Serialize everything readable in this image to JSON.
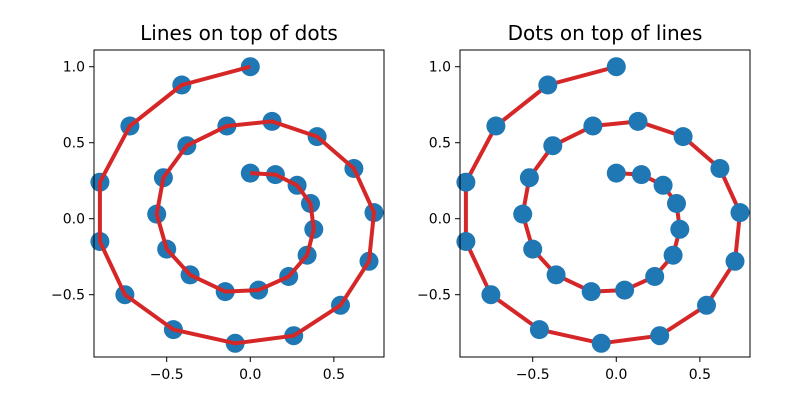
{
  "chart_data": [
    {
      "type": "scatter",
      "title": "Lines on top of dots",
      "xlabel": "",
      "ylabel": "",
      "xlim": [
        -0.935,
        0.8
      ],
      "ylim": [
        -0.91,
        1.11
      ],
      "xticks": [
        -0.5,
        0.0,
        0.5
      ],
      "xtick_labels": [
        "−0.5",
        "0.0",
        "0.5"
      ],
      "yticks": [
        -0.5,
        0.0,
        0.5,
        1.0
      ],
      "ytick_labels": [
        "−0.5",
        "0.0",
        "0.5",
        "1.0"
      ],
      "grid": false,
      "layering": "lines-over-dots",
      "dot_color": "#1f77b4",
      "line_color": "#d62728",
      "points": [
        {
          "x": 0.0,
          "y": 0.3
        },
        {
          "x": 0.15,
          "y": 0.29
        },
        {
          "x": 0.28,
          "y": 0.22
        },
        {
          "x": 0.36,
          "y": 0.1
        },
        {
          "x": 0.38,
          "y": -0.07
        },
        {
          "x": 0.34,
          "y": -0.24
        },
        {
          "x": 0.23,
          "y": -0.38
        },
        {
          "x": 0.05,
          "y": -0.47
        },
        {
          "x": -0.15,
          "y": -0.48
        },
        {
          "x": -0.36,
          "y": -0.37
        },
        {
          "x": -0.5,
          "y": -0.2
        },
        {
          "x": -0.56,
          "y": 0.03
        },
        {
          "x": -0.52,
          "y": 0.27
        },
        {
          "x": -0.38,
          "y": 0.48
        },
        {
          "x": -0.14,
          "y": 0.61
        },
        {
          "x": 0.13,
          "y": 0.64
        },
        {
          "x": 0.4,
          "y": 0.54
        },
        {
          "x": 0.62,
          "y": 0.33
        },
        {
          "x": 0.74,
          "y": 0.04
        },
        {
          "x": 0.71,
          "y": -0.28
        },
        {
          "x": 0.54,
          "y": -0.57
        },
        {
          "x": 0.26,
          "y": -0.77
        },
        {
          "x": -0.09,
          "y": -0.82
        },
        {
          "x": -0.46,
          "y": -0.73
        },
        {
          "x": -0.75,
          "y": -0.5
        },
        {
          "x": -0.9,
          "y": -0.15
        },
        {
          "x": -0.9,
          "y": 0.24
        },
        {
          "x": -0.72,
          "y": 0.61
        },
        {
          "x": -0.41,
          "y": 0.88
        },
        {
          "x": 0.0,
          "y": 1.0
        }
      ]
    },
    {
      "type": "scatter",
      "title": "Dots on top of lines",
      "xlabel": "",
      "ylabel": "",
      "xlim": [
        -0.935,
        0.8
      ],
      "ylim": [
        -0.91,
        1.11
      ],
      "xticks": [
        -0.5,
        0.0,
        0.5
      ],
      "xtick_labels": [
        "−0.5",
        "0.0",
        "0.5"
      ],
      "yticks": [
        -0.5,
        0.0,
        0.5,
        1.0
      ],
      "ytick_labels": [
        "−0.5",
        "0.0",
        "0.5",
        "1.0"
      ],
      "grid": false,
      "layering": "dots-over-lines",
      "dot_color": "#1f77b4",
      "line_color": "#d62728",
      "points": [
        {
          "x": 0.0,
          "y": 0.3
        },
        {
          "x": 0.15,
          "y": 0.29
        },
        {
          "x": 0.28,
          "y": 0.22
        },
        {
          "x": 0.36,
          "y": 0.1
        },
        {
          "x": 0.38,
          "y": -0.07
        },
        {
          "x": 0.34,
          "y": -0.24
        },
        {
          "x": 0.23,
          "y": -0.38
        },
        {
          "x": 0.05,
          "y": -0.47
        },
        {
          "x": -0.15,
          "y": -0.48
        },
        {
          "x": -0.36,
          "y": -0.37
        },
        {
          "x": -0.5,
          "y": -0.2
        },
        {
          "x": -0.56,
          "y": 0.03
        },
        {
          "x": -0.52,
          "y": 0.27
        },
        {
          "x": -0.38,
          "y": 0.48
        },
        {
          "x": -0.14,
          "y": 0.61
        },
        {
          "x": 0.13,
          "y": 0.64
        },
        {
          "x": 0.4,
          "y": 0.54
        },
        {
          "x": 0.62,
          "y": 0.33
        },
        {
          "x": 0.74,
          "y": 0.04
        },
        {
          "x": 0.71,
          "y": -0.28
        },
        {
          "x": 0.54,
          "y": -0.57
        },
        {
          "x": 0.26,
          "y": -0.77
        },
        {
          "x": -0.09,
          "y": -0.82
        },
        {
          "x": -0.46,
          "y": -0.73
        },
        {
          "x": -0.75,
          "y": -0.5
        },
        {
          "x": -0.9,
          "y": -0.15
        },
        {
          "x": -0.9,
          "y": 0.24
        },
        {
          "x": -0.72,
          "y": 0.61
        },
        {
          "x": -0.41,
          "y": 0.88
        },
        {
          "x": 0.0,
          "y": 1.0
        }
      ]
    }
  ]
}
